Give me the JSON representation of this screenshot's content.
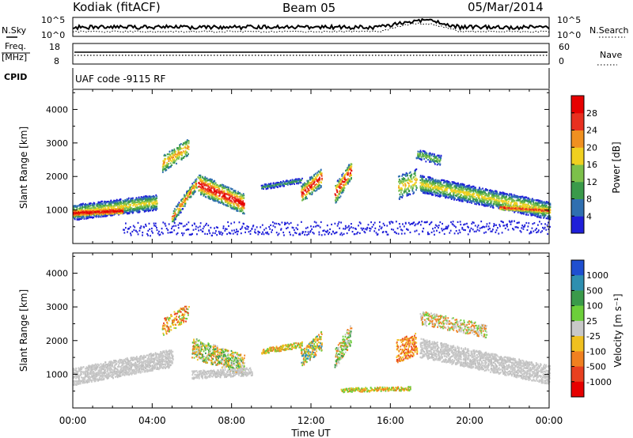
{
  "header": {
    "station": "Kodiak (fitACF)",
    "beam": "Beam 05",
    "date": "05/Mar/2014"
  },
  "status_panels": {
    "nsky_label": "N.Sky",
    "nsearch_label": "N.Search",
    "nsky_ticks": [
      "10^5",
      "10^0"
    ],
    "freq_label_1": "Freq.",
    "freq_label_2": "[MHz]",
    "freq_ticks": [
      "18",
      "8"
    ],
    "nave_label": "Nave",
    "nave_ticks": [
      "60",
      "0"
    ],
    "cpid_label": "CPID",
    "cpid_text": "UAF code -9115 RF"
  },
  "chart_data": [
    {
      "type": "heatmap",
      "name": "power",
      "ylabel": "Slant Range [km]",
      "xlabel": "Time UT",
      "x_ticks": [
        "00:00",
        "04:00",
        "08:00",
        "12:00",
        "16:00",
        "20:00",
        "00:00"
      ],
      "y_ticks": [
        1000,
        2000,
        3000,
        4000
      ],
      "ylim": [
        0,
        4600
      ],
      "xlim_hours": [
        0,
        24
      ],
      "colorbar_label": "Power [dB]",
      "colorbar_ticks": [
        4,
        8,
        12,
        16,
        20,
        24,
        28
      ],
      "colorbar_colors": [
        "#1f1fd9",
        "#2f6fb0",
        "#3a9a4a",
        "#7cc04a",
        "#f0d020",
        "#f09020",
        "#e83020",
        "#e60000"
      ]
    },
    {
      "type": "heatmap",
      "name": "velocity",
      "ylabel": "Slant Range [km]",
      "xlabel": "Time UT",
      "x_ticks": [
        "00:00",
        "04:00",
        "08:00",
        "12:00",
        "16:00",
        "20:00",
        "00:00"
      ],
      "y_ticks": [
        1000,
        2000,
        3000,
        4000
      ],
      "ylim": [
        0,
        4600
      ],
      "xlim_hours": [
        0,
        24
      ],
      "colorbar_label": "Velocity [m s⁻¹]",
      "colorbar_ticks": [
        "1000",
        "500",
        "100",
        "25",
        "-25",
        "-100",
        "-500",
        "-1000"
      ],
      "colorbar_colors": [
        "#1f4fd0",
        "#2e8fb0",
        "#3a9a4a",
        "#6ccf3a",
        "#c8c8c8",
        "#f0c020",
        "#f08020",
        "#e84020",
        "#e60000"
      ]
    }
  ]
}
